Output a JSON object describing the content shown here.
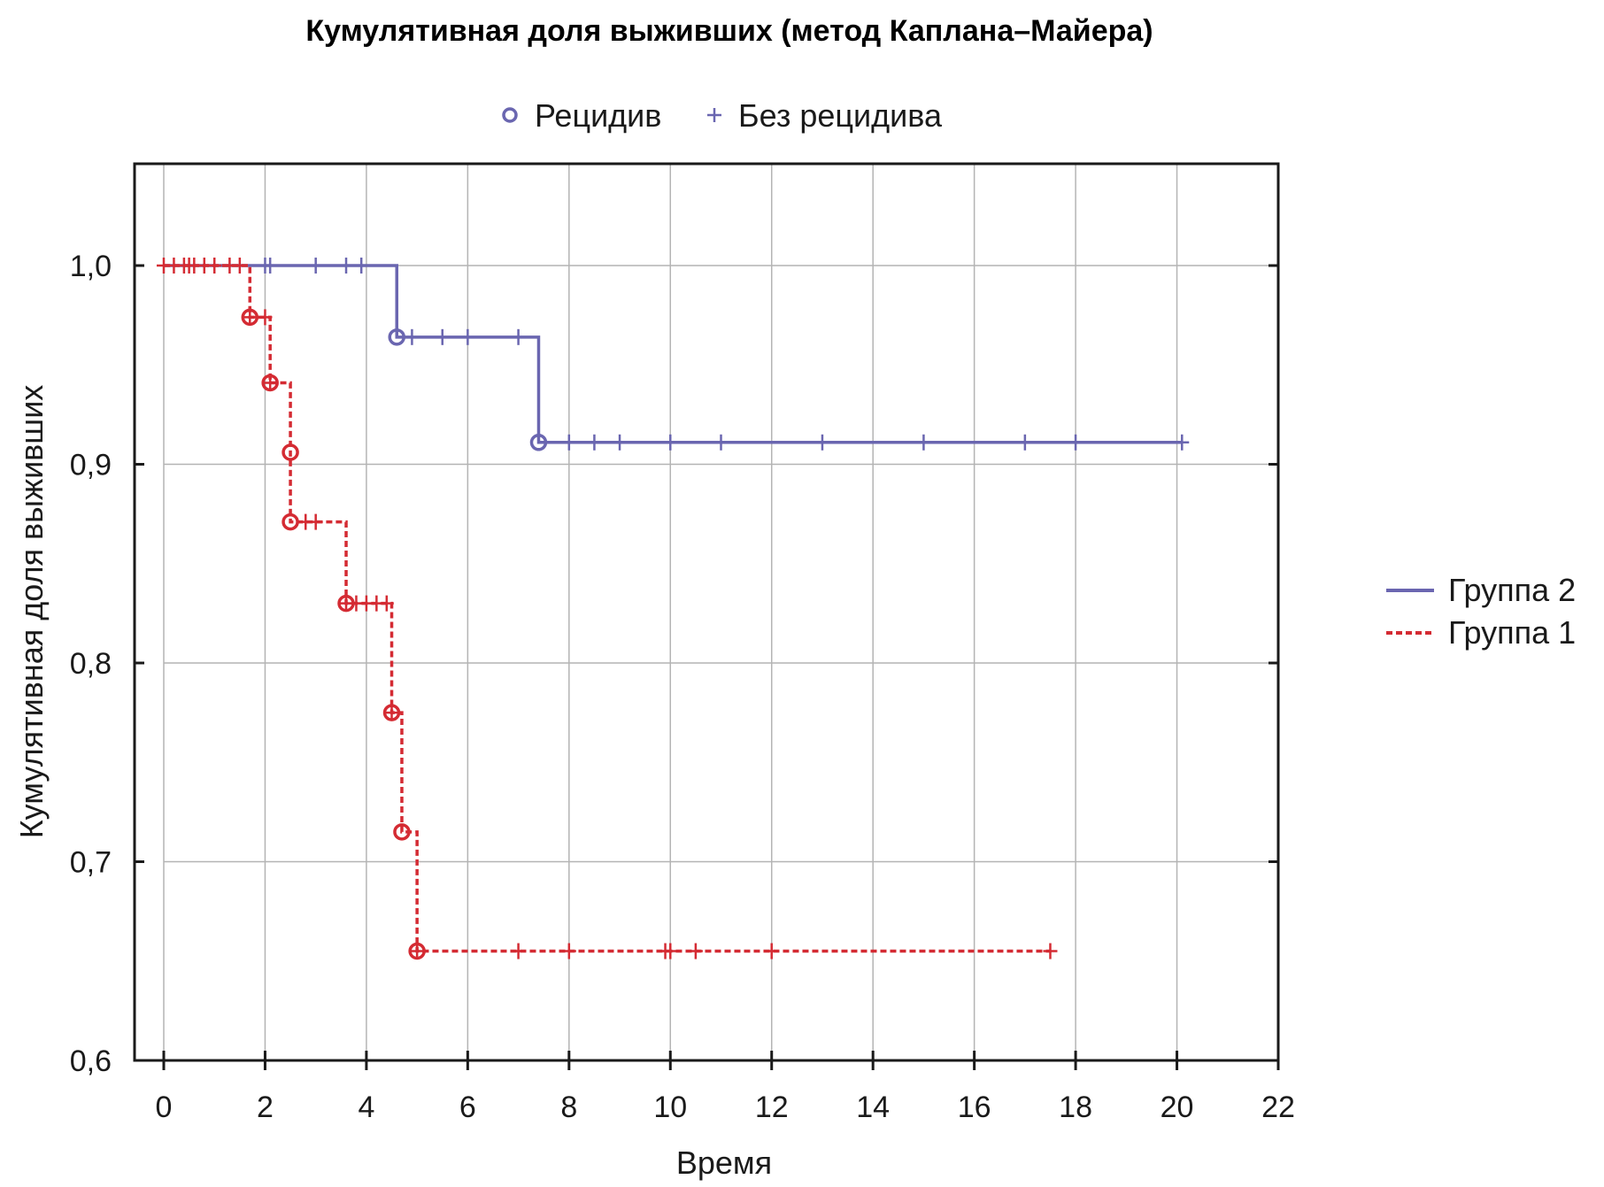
{
  "chart_data": {
    "type": "line",
    "title": "Кумулятивная доля выживших (метод Каплана–Майера)",
    "xlabel": "Время",
    "ylabel": "Кумулятивная доля выживших",
    "xlim": [
      0,
      22
    ],
    "ylim": [
      0.6,
      1.05
    ],
    "x_ticks": [
      "0",
      "2",
      "4",
      "6",
      "8",
      "10",
      "12",
      "14",
      "16",
      "18",
      "20",
      "22"
    ],
    "y_ticks": [
      "0,6",
      "0,7",
      "0,8",
      "0,9",
      "1,0"
    ],
    "grid": true,
    "marker_legend": {
      "placement": "top",
      "event_label": "Рецидив",
      "censored_label": "Без рецидива",
      "color": "#6a66b0"
    },
    "series_legend": {
      "placement": "right"
    },
    "series": [
      {
        "name": "Группа 2",
        "color": "#6a66b0",
        "style": "solid",
        "steps": [
          [
            0,
            1.0
          ],
          [
            4.6,
            0.964
          ],
          [
            7.4,
            0.911
          ],
          [
            20.1,
            0.911
          ]
        ],
        "events": [
          [
            4.6,
            0.964
          ],
          [
            7.4,
            0.911
          ]
        ],
        "censored": [
          [
            2.0,
            1.0
          ],
          [
            2.1,
            1.0
          ],
          [
            3.0,
            1.0
          ],
          [
            3.6,
            1.0
          ],
          [
            3.9,
            1.0
          ],
          [
            4.9,
            0.964
          ],
          [
            5.5,
            0.964
          ],
          [
            6.0,
            0.964
          ],
          [
            7.0,
            0.964
          ],
          [
            8.0,
            0.911
          ],
          [
            8.5,
            0.911
          ],
          [
            9.0,
            0.911
          ],
          [
            10.0,
            0.911
          ],
          [
            11.0,
            0.911
          ],
          [
            13.0,
            0.911
          ],
          [
            15.0,
            0.911
          ],
          [
            17.0,
            0.911
          ],
          [
            18.0,
            0.911
          ],
          [
            20.1,
            0.911
          ]
        ]
      },
      {
        "name": "Группа 1",
        "color": "#d42b33",
        "style": "dashed",
        "steps": [
          [
            0,
            1.0
          ],
          [
            1.7,
            0.974
          ],
          [
            2.1,
            0.941
          ],
          [
            2.5,
            0.906
          ],
          [
            2.5,
            0.871
          ],
          [
            3.6,
            0.83
          ],
          [
            4.5,
            0.775
          ],
          [
            4.7,
            0.715
          ],
          [
            5.0,
            0.655
          ],
          [
            17.5,
            0.655
          ]
        ],
        "events": [
          [
            1.7,
            0.974
          ],
          [
            2.1,
            0.941
          ],
          [
            2.5,
            0.906
          ],
          [
            2.5,
            0.871
          ],
          [
            3.6,
            0.83
          ],
          [
            4.5,
            0.775
          ],
          [
            4.7,
            0.715
          ],
          [
            5.0,
            0.655
          ]
        ],
        "censored": [
          [
            0.0,
            1.0
          ],
          [
            0.2,
            1.0
          ],
          [
            0.4,
            1.0
          ],
          [
            0.5,
            1.0
          ],
          [
            0.6,
            1.0
          ],
          [
            0.8,
            1.0
          ],
          [
            1.0,
            1.0
          ],
          [
            1.3,
            1.0
          ],
          [
            1.5,
            1.0
          ],
          [
            1.7,
            0.974
          ],
          [
            2.0,
            0.974
          ],
          [
            2.1,
            0.941
          ],
          [
            2.8,
            0.871
          ],
          [
            3.0,
            0.871
          ],
          [
            3.6,
            0.83
          ],
          [
            3.8,
            0.83
          ],
          [
            4.0,
            0.83
          ],
          [
            4.2,
            0.83
          ],
          [
            4.4,
            0.83
          ],
          [
            4.5,
            0.775
          ],
          [
            5.0,
            0.655
          ],
          [
            7.0,
            0.655
          ],
          [
            8.0,
            0.655
          ],
          [
            9.9,
            0.655
          ],
          [
            10.0,
            0.655
          ],
          [
            10.5,
            0.655
          ],
          [
            12.0,
            0.655
          ],
          [
            17.5,
            0.655
          ]
        ]
      }
    ]
  }
}
